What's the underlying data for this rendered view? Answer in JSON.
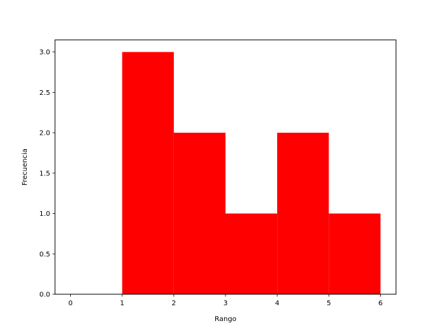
{
  "chart_data": {
    "type": "bar",
    "subtype": "histogram",
    "bins": [
      {
        "start": 1,
        "end": 2,
        "value": 3
      },
      {
        "start": 2,
        "end": 3,
        "value": 2
      },
      {
        "start": 3,
        "end": 4,
        "value": 1
      },
      {
        "start": 4,
        "end": 5,
        "value": 2
      },
      {
        "start": 5,
        "end": 6,
        "value": 1
      }
    ],
    "xlabel": "Rango",
    "ylabel": "Frecuencia",
    "xlim": [
      -0.3,
      6.3
    ],
    "ylim": [
      0,
      3.15
    ],
    "xticks": [
      "0",
      "1",
      "2",
      "3",
      "4",
      "5",
      "6"
    ],
    "yticks": [
      "0.0",
      "0.5",
      "1.0",
      "1.5",
      "2.0",
      "2.5",
      "3.0"
    ],
    "bar_color": "#ff0000",
    "grid": false,
    "legend": "none"
  }
}
